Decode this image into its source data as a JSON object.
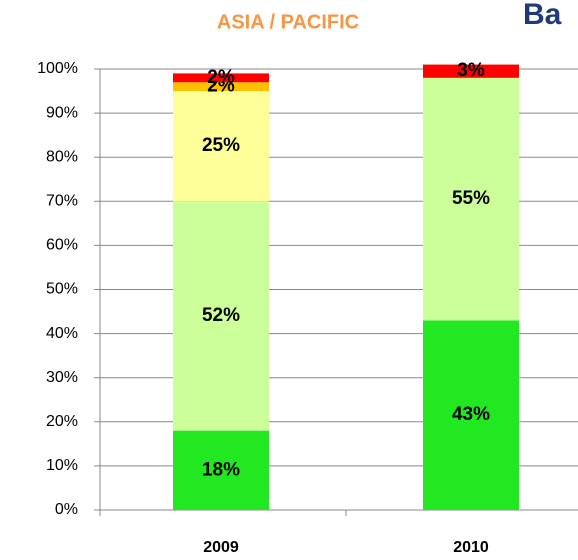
{
  "chart_data": {
    "type": "bar",
    "stacked": true,
    "title": "ASIA / PACIFIC",
    "corner_text": "Ba",
    "categories": [
      "2009",
      "2010"
    ],
    "series": [
      {
        "color": "#22e822",
        "values": [
          18,
          43
        ],
        "value_labels": [
          "18%",
          "43%"
        ]
      },
      {
        "color": "#ccff99",
        "values": [
          52,
          55
        ],
        "value_labels": [
          "52%",
          "55%"
        ]
      },
      {
        "color": "#ffff99",
        "values": [
          25,
          null
        ],
        "value_labels": [
          "25%",
          null
        ]
      },
      {
        "color": "#ffc000",
        "values": [
          2,
          null
        ],
        "value_labels": [
          "2%",
          null
        ]
      },
      {
        "color": "#ff0000",
        "values": [
          2,
          3
        ],
        "value_labels": [
          "2%",
          "3%"
        ]
      }
    ],
    "ylim": [
      0,
      100
    ],
    "yticks": [
      {
        "value": 0,
        "label": "0%"
      },
      {
        "value": 10,
        "label": "10%"
      },
      {
        "value": 20,
        "label": "20%"
      },
      {
        "value": 30,
        "label": "30%"
      },
      {
        "value": 40,
        "label": "40%"
      },
      {
        "value": 50,
        "label": "50%"
      },
      {
        "value": 60,
        "label": "60%"
      },
      {
        "value": 70,
        "label": "70%"
      },
      {
        "value": 80,
        "label": "80%"
      },
      {
        "value": 90,
        "label": "90%"
      },
      {
        "value": 100,
        "label": "100%"
      }
    ],
    "grid": true
  }
}
